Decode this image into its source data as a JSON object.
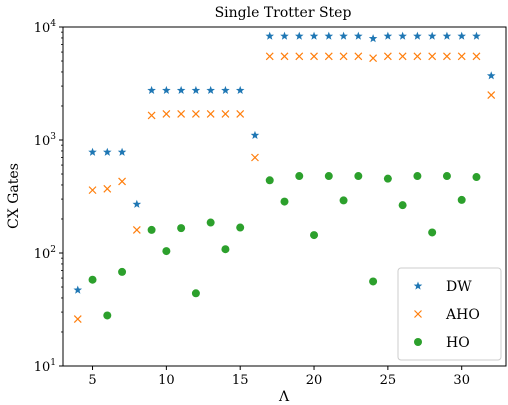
{
  "chart_data": {
    "type": "scatter",
    "title": "Single Trotter Step",
    "xlabel": "Λ",
    "ylabel": "CX Gates",
    "xlim": [
      3,
      33
    ],
    "ylim": [
      10,
      10000
    ],
    "yscale": "log",
    "grid": false,
    "legend_position": "bottom-right",
    "x_ticks": [
      5,
      10,
      15,
      20,
      25,
      30
    ],
    "x_tick_labels": [
      "5",
      "10",
      "15",
      "20",
      "25",
      "30"
    ],
    "y_ticks": [
      10,
      100,
      1000,
      10000
    ],
    "y_tick_labels": [
      {
        "base": "10",
        "exp": "1"
      },
      {
        "base": "10",
        "exp": "2"
      },
      {
        "base": "10",
        "exp": "3"
      },
      {
        "base": "10",
        "exp": "4"
      }
    ],
    "x": [
      4,
      5,
      6,
      7,
      8,
      9,
      10,
      11,
      12,
      13,
      14,
      15,
      16,
      17,
      18,
      19,
      20,
      21,
      22,
      23,
      24,
      25,
      26,
      27,
      28,
      29,
      30,
      31,
      32
    ],
    "series": [
      {
        "name": "DW",
        "marker": "star",
        "color": "#1f77b4",
        "values": [
          47,
          780,
          780,
          780,
          270,
          2750,
          2750,
          2750,
          2750,
          2750,
          2750,
          2750,
          1100,
          8300,
          8300,
          8300,
          8300,
          8300,
          8300,
          8300,
          7900,
          8300,
          8300,
          8300,
          8300,
          8300,
          8300,
          8300,
          3700
        ]
      },
      {
        "name": "AHO",
        "marker": "x",
        "color": "#ff7f0e",
        "values": [
          26,
          360,
          370,
          430,
          160,
          1650,
          1700,
          1700,
          1700,
          1700,
          1700,
          1700,
          700,
          5500,
          5500,
          5500,
          5500,
          5500,
          5500,
          5500,
          5300,
          5500,
          5500,
          5500,
          5500,
          5500,
          5500,
          5500,
          2500
        ]
      },
      {
        "name": "HO",
        "marker": "circle",
        "color": "#2ca02c",
        "values": [
          null,
          58,
          28,
          68,
          null,
          160,
          104,
          166,
          44,
          186,
          108,
          168,
          null,
          440,
          285,
          480,
          144,
          480,
          292,
          480,
          56,
          455,
          265,
          480,
          152,
          480,
          295,
          470,
          null
        ]
      }
    ]
  }
}
